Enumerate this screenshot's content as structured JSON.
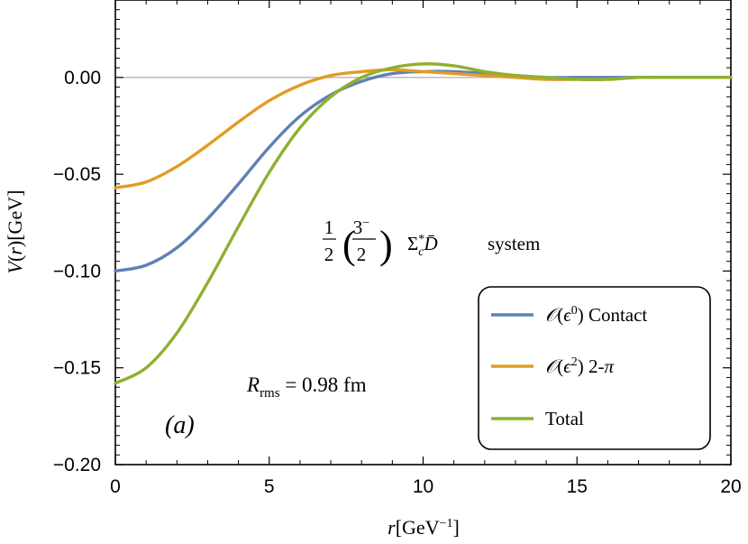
{
  "chart_data": {
    "type": "line",
    "xlabel": "r[GeV⁻¹]",
    "ylabel": "V(r)[GeV]",
    "xlim": [
      0,
      20
    ],
    "ylim": [
      -0.2,
      0.04
    ],
    "x_ticks": [
      0,
      5,
      10,
      15,
      20
    ],
    "x_tick_labels": [
      "0",
      "5",
      "10",
      "15",
      "20"
    ],
    "y_ticks": [
      0.0,
      -0.05,
      -0.1,
      -0.15,
      -0.2
    ],
    "y_tick_labels": [
      "0.00",
      "−0.05",
      "−0.10",
      "−0.15",
      "−0.20"
    ],
    "zero_line": true,
    "grid": false,
    "legend_position": "bottom-right",
    "series": [
      {
        "name": "𝒪(ϵ⁰) Contact",
        "color": "#5e81b5",
        "x": [
          0,
          1,
          2,
          3,
          4,
          5,
          6,
          7,
          8,
          9,
          10,
          11,
          12,
          13,
          14,
          15,
          16,
          17,
          18,
          19,
          20
        ],
        "y": [
          -0.1,
          -0.097,
          -0.088,
          -0.073,
          -0.055,
          -0.036,
          -0.02,
          -0.009,
          -0.002,
          0.002,
          0.003,
          0.003,
          0.002,
          0.001,
          0.0,
          0.0,
          0.0,
          0.0,
          0.0,
          0.0,
          0.0
        ]
      },
      {
        "name": "𝒪(ϵ²) 2-π",
        "color": "#e19c24",
        "x": [
          0,
          1,
          2,
          3,
          4,
          5,
          6,
          7,
          8,
          9,
          10,
          11,
          12,
          13,
          14,
          15,
          16,
          17,
          18,
          19,
          20
        ],
        "y": [
          -0.057,
          -0.054,
          -0.046,
          -0.035,
          -0.023,
          -0.012,
          -0.004,
          0.001,
          0.003,
          0.004,
          0.003,
          0.002,
          0.001,
          0.0,
          -0.001,
          -0.001,
          -0.001,
          0.0,
          0.0,
          0.0,
          0.0
        ]
      },
      {
        "name": "Total",
        "color": "#8fb032",
        "x": [
          0,
          1,
          2,
          3,
          4,
          5,
          6,
          7,
          8,
          9,
          10,
          11,
          12,
          13,
          14,
          15,
          16,
          17,
          18,
          19,
          20
        ],
        "y": [
          -0.158,
          -0.15,
          -0.132,
          -0.106,
          -0.077,
          -0.049,
          -0.026,
          -0.01,
          0.0,
          0.005,
          0.007,
          0.006,
          0.003,
          0.001,
          0.0,
          -0.001,
          -0.001,
          0.0,
          0.0,
          0.0,
          0.0
        ]
      }
    ],
    "annotations": {
      "system_label": "system",
      "rms_label": "R_rms = 0.98 fm",
      "panel_label": "(a)"
    }
  }
}
